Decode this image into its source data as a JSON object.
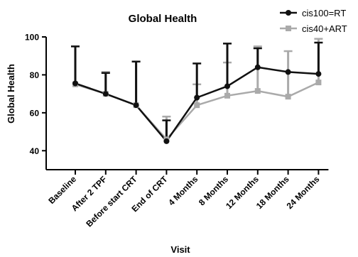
{
  "chart_data": {
    "type": "line",
    "title": "Global Health",
    "xlabel": "Visit",
    "ylabel": "Global  Health",
    "categories": [
      "Baseline",
      "After 2 TPF",
      "Before start CRT",
      "End of CRT",
      "4 Months",
      "8 Months",
      "12 Months",
      "18 Months",
      "24 Months"
    ],
    "ylim": [
      30,
      100
    ],
    "yticks": [
      40,
      60,
      80,
      100
    ],
    "grid": false,
    "legend_position": "top-right",
    "series": [
      {
        "name": "cis100=RT",
        "color": "#111111",
        "marker": "circle",
        "values": [
          75.5,
          70,
          64,
          45,
          68,
          74,
          84,
          81.5,
          80.5
        ],
        "error_upper": [
          95,
          81,
          87,
          56,
          86,
          96.5,
          94,
          80.5,
          97
        ]
      },
      {
        "name": "cis40+ART",
        "color": "#aaaaaa",
        "marker": "square",
        "values": [
          75,
          70,
          64,
          46,
          64,
          69,
          71.5,
          68.5,
          76
        ],
        "error_upper": [
          95,
          81.5,
          87,
          58,
          75,
          86.5,
          95,
          92.5,
          99
        ]
      }
    ]
  }
}
